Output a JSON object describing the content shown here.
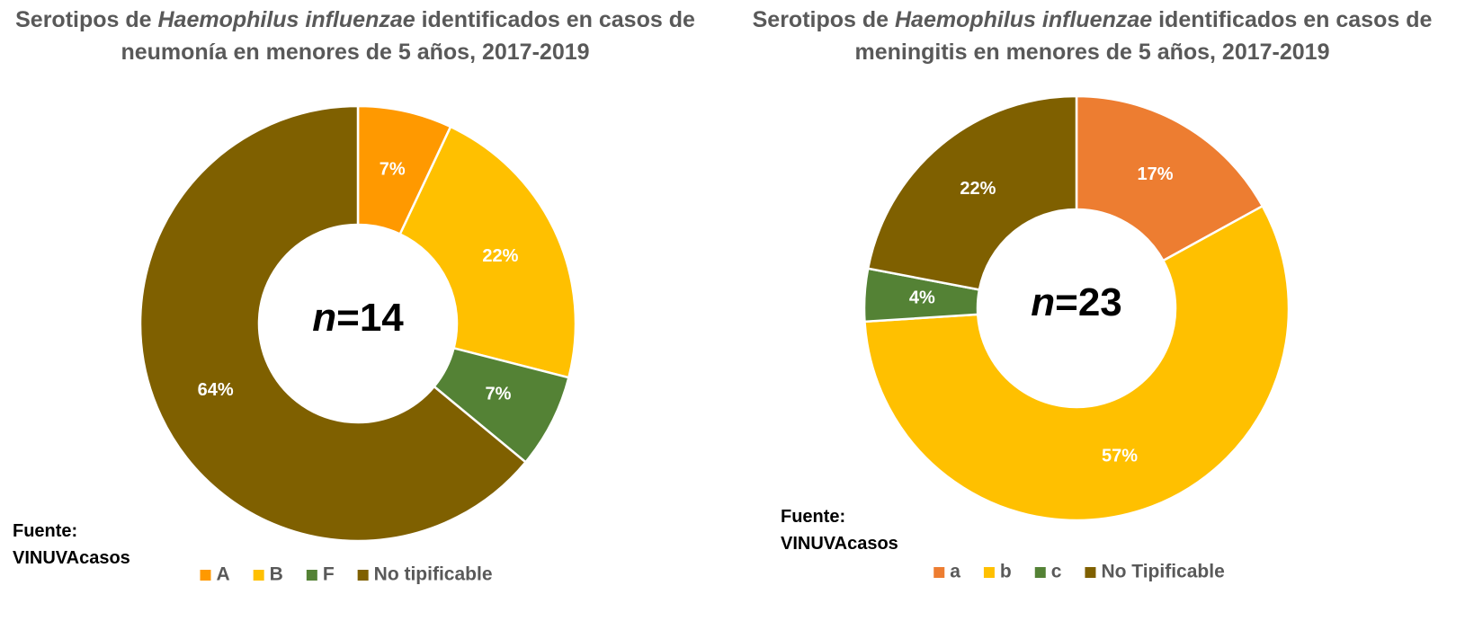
{
  "chart_data": [
    {
      "type": "donut",
      "title": [
        "Serotipos de",
        "Haemophilus influenzae",
        "identificados en casos de neumonía en menores de 5 años, 2017-2019"
      ],
      "center_label": [
        "n",
        "=14"
      ],
      "categories": [
        "A",
        "B",
        "F",
        "No tipificable"
      ],
      "values": [
        7,
        22,
        7,
        64
      ],
      "value_labels": [
        "7%",
        "22%",
        "7%",
        "64%"
      ],
      "colors": [
        "#ff9900",
        "#ffc000",
        "#548235",
        "#7f6000"
      ],
      "source": "Fuente: VINUVAcasos"
    },
    {
      "type": "donut",
      "title": [
        "Serotipos de",
        "Haemophilus influenzae",
        "identificados en casos de meningitis en menores de 5 años, 2017-2019"
      ],
      "center_label": [
        "n",
        "=23"
      ],
      "categories": [
        "a",
        "b",
        "c",
        "No Tipificable"
      ],
      "values": [
        17,
        57,
        4,
        22
      ],
      "value_labels": [
        "17%",
        "57%",
        "4%",
        "22%"
      ],
      "colors": [
        "#ed7d31",
        "#ffc000",
        "#548235",
        "#7f6000"
      ],
      "source": "Fuente: VINUVAcasos"
    }
  ]
}
